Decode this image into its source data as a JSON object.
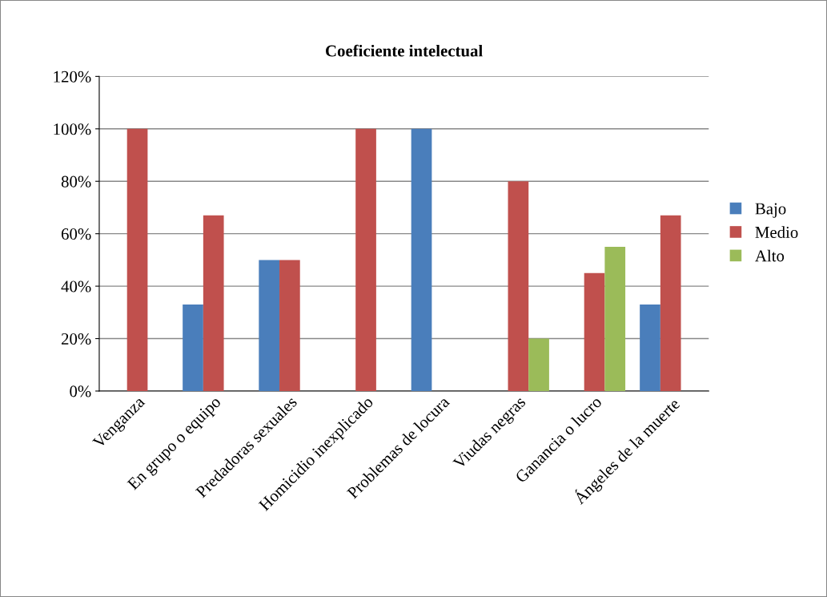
{
  "chart_data": {
    "type": "bar",
    "title": "Coeficiente intelectual",
    "categories": [
      "Venganza",
      "En grupo o equipo",
      "Predadoras sexuales",
      "Homicidio inexplicado",
      "Problemas de locura",
      "Viudas negras",
      "Ganancia o lucro",
      "Ángeles de la muerte"
    ],
    "series": [
      {
        "name": "Bajo",
        "color": "#4a7ebb",
        "values": [
          null,
          33,
          50,
          null,
          100,
          null,
          null,
          33
        ]
      },
      {
        "name": "Medio",
        "color": "#c0504d",
        "values": [
          100,
          67,
          50,
          100,
          null,
          80,
          45,
          67
        ]
      },
      {
        "name": "Alto",
        "color": "#9bbb59",
        "values": [
          null,
          null,
          null,
          null,
          null,
          20,
          55,
          null
        ]
      }
    ],
    "ylim": [
      0,
      120
    ],
    "yticks": [
      {
        "value": 0,
        "label": "0%"
      },
      {
        "value": 20,
        "label": "20%"
      },
      {
        "value": 40,
        "label": "40%"
      },
      {
        "value": 60,
        "label": "60%"
      },
      {
        "value": 80,
        "label": "80%"
      },
      {
        "value": 100,
        "label": "100%"
      },
      {
        "value": 120,
        "label": "120%"
      }
    ],
    "grid": "y",
    "legend": "right"
  }
}
